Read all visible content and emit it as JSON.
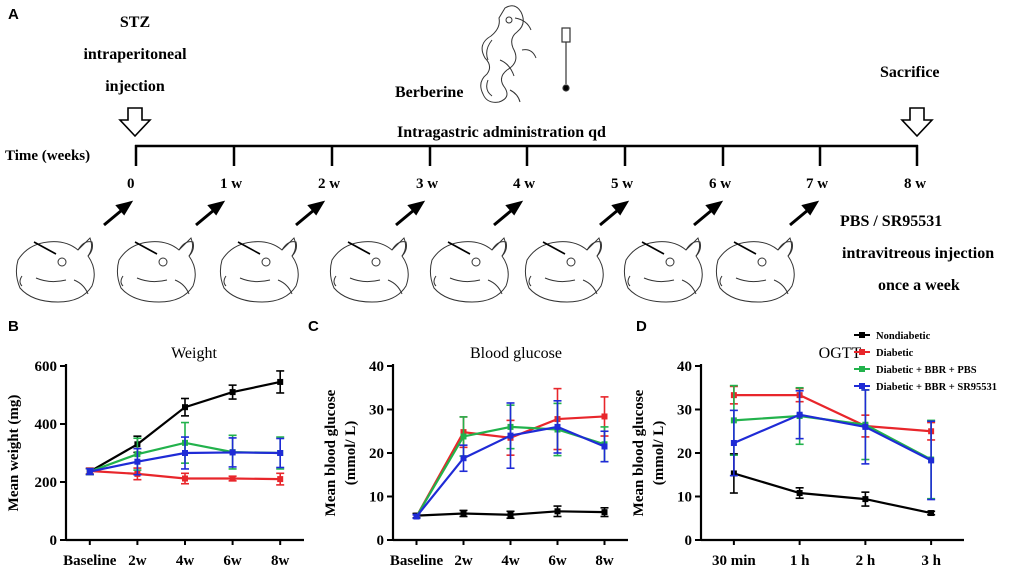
{
  "panels": {
    "a": "A",
    "b": "B",
    "c": "C",
    "d": "D"
  },
  "timeline": {
    "stz_line1": "STZ",
    "stz_line2": "intraperitoneal",
    "stz_line3": "injection",
    "berberine": "Berberine",
    "sacrifice": "Sacrifice",
    "intragastric": "Intragastric administration qd",
    "time_label": "Time (weeks)",
    "ticks": [
      "0",
      "1 w",
      "2 w",
      "3 w",
      "4 w",
      "5 w",
      "6 w",
      "7 w",
      "8 w"
    ],
    "injection_line1": "PBS / SR95531",
    "injection_line2": "intravitreous injection",
    "injection_line3": "once a week"
  },
  "legend": {
    "items": [
      {
        "label": "Nondiabetic",
        "color": "#000000"
      },
      {
        "label": "Diabetic",
        "color": "#e8262b"
      },
      {
        "label": "Diabetic + BBR + PBS",
        "color": "#22b24c"
      },
      {
        "label": "Diabetic + BBR + SR95531",
        "color": "#1f2bd6"
      }
    ]
  },
  "chart_data": [
    {
      "type": "line",
      "title": "Weight",
      "xlabel": "",
      "ylabel": "Mean weight (mg)",
      "categories": [
        "Baseline",
        "2w",
        "4w",
        "6w",
        "8w"
      ],
      "ylim": [
        0,
        600
      ],
      "yticks": [
        "0",
        "200",
        "400",
        "600"
      ],
      "series": [
        {
          "name": "Nondiabetic",
          "color": "#000000",
          "values": [
            236,
            330,
            458,
            510,
            545
          ],
          "err": [
            10,
            28,
            30,
            24,
            38
          ]
        },
        {
          "name": "Diabetic",
          "color": "#e8262b",
          "values": [
            238,
            228,
            212,
            212,
            210
          ],
          "err": [
            10,
            20,
            18,
            8,
            20
          ]
        },
        {
          "name": "Diabetic + BBR + PBS",
          "color": "#22b24c",
          "values": [
            236,
            296,
            335,
            303,
            300
          ],
          "err": [
            10,
            55,
            70,
            58,
            55
          ]
        },
        {
          "name": "Diabetic + BBR + SR95531",
          "color": "#1f2bd6",
          "values": [
            236,
            270,
            300,
            302,
            300
          ],
          "err": [
            10,
            45,
            55,
            50,
            50
          ]
        }
      ]
    },
    {
      "type": "line",
      "title": "Blood glucose",
      "xlabel": "",
      "ylabel": "Mean blood glucose\n(mmol/ L)",
      "categories": [
        "Baseline",
        "2w",
        "4w",
        "6w",
        "8w"
      ],
      "ylim": [
        0,
        40
      ],
      "yticks": [
        "0",
        "10",
        "20",
        "30",
        "40"
      ],
      "series": [
        {
          "name": "Nondiabetic",
          "color": "#000000",
          "values": [
            5.6,
            6.1,
            5.8,
            6.6,
            6.4
          ],
          "err": [
            0.5,
            0.7,
            0.8,
            1.2,
            1.0
          ]
        },
        {
          "name": "Diabetic",
          "color": "#e8262b",
          "values": [
            5.4,
            24.8,
            23.5,
            27.8,
            28.4
          ],
          "err": [
            0.4,
            3.5,
            4.0,
            7.0,
            4.5
          ]
        },
        {
          "name": "Diabetic + BBR + PBS",
          "color": "#22b24c",
          "values": [
            5.4,
            23.8,
            26.0,
            25.4,
            22.0
          ],
          "err": [
            0.4,
            4.5,
            5.0,
            6.0,
            4.0
          ]
        },
        {
          "name": "Diabetic + BBR + SR95531",
          "color": "#1f2bd6",
          "values": [
            5.4,
            18.8,
            24.0,
            26.0,
            21.5
          ],
          "err": [
            0.4,
            3.0,
            7.5,
            6.0,
            3.5
          ]
        }
      ]
    },
    {
      "type": "line",
      "title": "OGTT",
      "xlabel": "",
      "ylabel": "Mean blood glucose\n(mmol/ L)",
      "categories": [
        "30 min",
        "1 h",
        "2 h",
        "3 h"
      ],
      "ylim": [
        0,
        40
      ],
      "yticks": [
        "0",
        "10",
        "20",
        "30",
        "40"
      ],
      "series": [
        {
          "name": "Nondiabetic",
          "color": "#000000",
          "values": [
            15.3,
            10.8,
            9.4,
            6.2
          ],
          "err": [
            4.5,
            1.2,
            1.6,
            0.4
          ]
        },
        {
          "name": "Diabetic",
          "color": "#e8262b",
          "values": [
            33.3,
            33.3,
            26.2,
            25.0
          ],
          "err": [
            2.0,
            1.5,
            2.5,
            2.0
          ]
        },
        {
          "name": "Diabetic + BBR + PBS",
          "color": "#22b24c",
          "values": [
            27.5,
            28.5,
            26.5,
            18.5
          ],
          "err": [
            8.0,
            6.5,
            8.0,
            9.0
          ]
        },
        {
          "name": "Diabetic + BBR + SR95531",
          "color": "#1f2bd6",
          "values": [
            22.3,
            28.8,
            26.0,
            18.3
          ],
          "err": [
            7.5,
            5.5,
            8.5,
            9.0
          ]
        }
      ]
    }
  ]
}
